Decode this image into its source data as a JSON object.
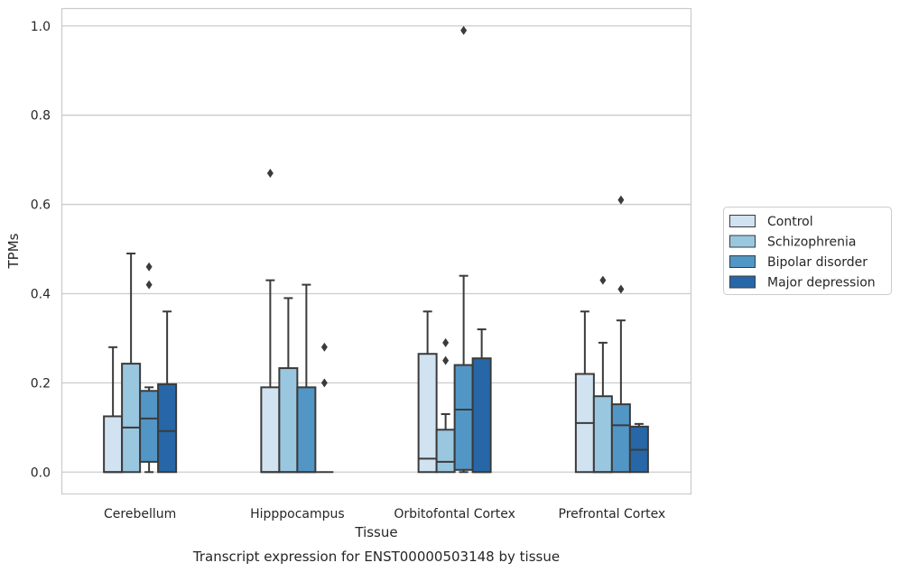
{
  "chart_data": {
    "type": "box",
    "xlabel": "Tissue",
    "ylabel": "TPMs",
    "caption": "Transcript expression for ENST00000503148 by tissue",
    "ylim": [
      -0.048,
      1.04
    ],
    "yticks": [
      "0.0",
      "0.2",
      "0.4",
      "0.6",
      "0.8",
      "1.0"
    ],
    "grid": "horizontal",
    "legend_position": "right",
    "categories": [
      "Cerebellum",
      "Hipppocampus",
      "Orbitofontal Cortex",
      "Prefrontal Cortex"
    ],
    "series": [
      {
        "name": "Control",
        "color": "#d1e2f1",
        "boxes": [
          {
            "q1": 0.0,
            "median": 0.0,
            "q3": 0.125,
            "whisker_low": 0.0,
            "whisker_high": 0.28,
            "outliers": []
          },
          {
            "q1": 0.0,
            "median": 0.0,
            "q3": 0.19,
            "whisker_low": 0.0,
            "whisker_high": 0.43,
            "outliers": [
              0.67
            ]
          },
          {
            "q1": 0.0,
            "median": 0.03,
            "q3": 0.265,
            "whisker_low": 0.0,
            "whisker_high": 0.36,
            "outliers": []
          },
          {
            "q1": 0.0,
            "median": 0.11,
            "q3": 0.22,
            "whisker_low": 0.0,
            "whisker_high": 0.36,
            "outliers": []
          }
        ]
      },
      {
        "name": "Schizophrenia",
        "color": "#9ac7e0",
        "boxes": [
          {
            "q1": 0.0,
            "median": 0.1,
            "q3": 0.243,
            "whisker_low": 0.0,
            "whisker_high": 0.49,
            "outliers": []
          },
          {
            "q1": 0.0,
            "median": 0.0,
            "q3": 0.233,
            "whisker_low": 0.0,
            "whisker_high": 0.39,
            "outliers": []
          },
          {
            "q1": 0.0,
            "median": 0.023,
            "q3": 0.095,
            "whisker_low": 0.0,
            "whisker_high": 0.13,
            "outliers": [
              0.25,
              0.29
            ]
          },
          {
            "q1": 0.0,
            "median": 0.0,
            "q3": 0.17,
            "whisker_low": 0.0,
            "whisker_high": 0.29,
            "outliers": [
              0.43
            ]
          }
        ]
      },
      {
        "name": "Bipolar disorder",
        "color": "#5296c6",
        "boxes": [
          {
            "q1": 0.023,
            "median": 0.12,
            "q3": 0.182,
            "whisker_low": 0.0,
            "whisker_high": 0.19,
            "outliers": [
              0.42,
              0.46
            ]
          },
          {
            "q1": 0.0,
            "median": 0.0,
            "q3": 0.19,
            "whisker_low": 0.0,
            "whisker_high": 0.42,
            "outliers": []
          },
          {
            "q1": 0.005,
            "median": 0.14,
            "q3": 0.24,
            "whisker_low": 0.0,
            "whisker_high": 0.44,
            "outliers": [
              0.99
            ]
          },
          {
            "q1": 0.0,
            "median": 0.105,
            "q3": 0.152,
            "whisker_low": 0.0,
            "whisker_high": 0.34,
            "outliers": [
              0.41,
              0.61
            ]
          }
        ]
      },
      {
        "name": "Major depression",
        "color": "#2767a8",
        "boxes": [
          {
            "q1": 0.0,
            "median": 0.092,
            "q3": 0.197,
            "whisker_low": 0.0,
            "whisker_high": 0.36,
            "outliers": []
          },
          {
            "q1": 0.0,
            "median": 0.0,
            "q3": 0.0,
            "whisker_low": 0.0,
            "whisker_high": 0.0,
            "outliers": [
              0.2,
              0.28
            ]
          },
          {
            "q1": 0.0,
            "median": 0.0,
            "q3": 0.255,
            "whisker_low": 0.0,
            "whisker_high": 0.32,
            "outliers": []
          },
          {
            "q1": 0.0,
            "median": 0.05,
            "q3": 0.102,
            "whisker_low": 0.0,
            "whisker_high": 0.108,
            "outliers": []
          }
        ]
      }
    ]
  }
}
